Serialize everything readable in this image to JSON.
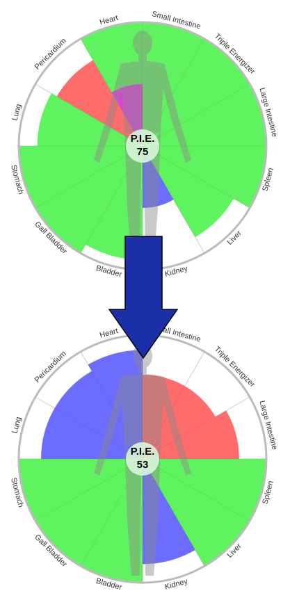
{
  "chart_data": [
    {
      "type": "polar-area",
      "center_label": "P.I.E.",
      "center_value": "75",
      "rlim": [
        0,
        100
      ],
      "segments": [
        {
          "name": "Small Intestine",
          "value": 100,
          "color": "#22ee22"
        },
        {
          "name": "Triple Energizer",
          "value": 100,
          "color": "#22ee22"
        },
        {
          "name": "Large Intestine",
          "value": 100,
          "color": "#22ee22"
        },
        {
          "name": "Spleen",
          "value": 100,
          "color": "#22ee22"
        },
        {
          "name": "Liver",
          "value": 85,
          "color": "#22ee22"
        },
        {
          "name": "Kidney",
          "value": 50,
          "color": "#3333ff"
        },
        {
          "name": "Bladder",
          "value": 92,
          "color": "#22ee22"
        },
        {
          "name": "Gall Bladder",
          "value": 100,
          "color": "#22ee22"
        },
        {
          "name": "Stomach",
          "value": 100,
          "color": "#22ee22"
        },
        {
          "name": "Lung",
          "value": 85,
          "color": "#22ee22"
        },
        {
          "name": "Pericardium",
          "value": 80,
          "color": "#ff3333"
        },
        {
          "name": "Heart",
          "value": 100,
          "color": "#22ee22"
        },
        {
          "name": "",
          "value": 50,
          "color": "#ee22ee"
        }
      ]
    },
    {
      "type": "polar-area",
      "center_label": "P.I.E.",
      "center_value": "53",
      "rlim": [
        0,
        100
      ],
      "segments": [
        {
          "name": "Small Intestine",
          "value": 68,
          "color": "#ff3333"
        },
        {
          "name": "Triple Energizer",
          "value": 68,
          "color": "#ff3333"
        },
        {
          "name": "Large Intestine",
          "value": 78,
          "color": "#ff3333"
        },
        {
          "name": "Spleen",
          "value": 100,
          "color": "#22ee22"
        },
        {
          "name": "Liver",
          "value": 100,
          "color": "#22ee22"
        },
        {
          "name": "Kidney",
          "value": 85,
          "color": "#3333ff"
        },
        {
          "name": "Bladder",
          "value": 100,
          "color": "#22ee22"
        },
        {
          "name": "Gall Bladder",
          "value": 100,
          "color": "#22ee22"
        },
        {
          "name": "Stomach",
          "value": 100,
          "color": "#22ee22"
        },
        {
          "name": "Lung",
          "value": 82,
          "color": "#3333ff"
        },
        {
          "name": "Pericardium",
          "value": 82,
          "color": "#3333ff"
        },
        {
          "name": "Heart",
          "value": 88,
          "color": "#3333ff"
        }
      ]
    }
  ],
  "colors": {
    "ring": "#bbbbbb",
    "divider": "#cccccc",
    "center_disc": "#d8f5d8",
    "body_silhouette": "#8a8a8a",
    "arrow_fill": "#1a2fa8",
    "arrow_stroke": "#000000"
  },
  "decorations": {
    "silhouette": "human-body-figure",
    "transition_arrow": "down-arrow"
  }
}
